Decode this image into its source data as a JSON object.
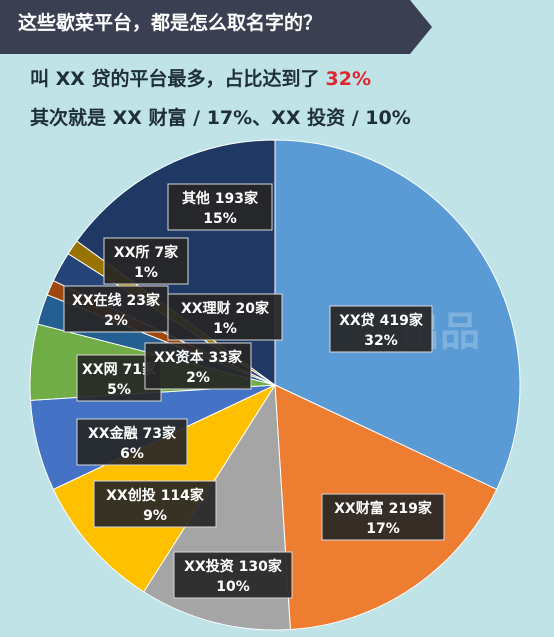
{
  "title": "这些歇菜平台，都是怎么取名字的？",
  "headline1": {
    "prefix": "叫 XX 贷的平台最多，占比达到了",
    "value": "32%"
  },
  "headline2": "其次就是 XX 财富 / 17%、XX 投资 / 10%",
  "watermark": "出品",
  "colors": {
    "background": "#bfe3e6",
    "banner": "#3a3f52",
    "accent": "#e0262e",
    "label_bg": "#262626"
  },
  "chart_data": {
    "type": "pie",
    "start_angle_deg": 0,
    "slices": [
      {
        "name": "XX贷",
        "count": "419家",
        "percent": 32,
        "percent_label": "32%",
        "color": "#5b9bd5"
      },
      {
        "name": "XX财富",
        "count": "219家",
        "percent": 17,
        "percent_label": "17%",
        "color": "#ed7d31"
      },
      {
        "name": "XX投资",
        "count": "130家",
        "percent": 10,
        "percent_label": "10%",
        "color": "#a5a5a5"
      },
      {
        "name": "XX创投",
        "count": "114家",
        "percent": 9,
        "percent_label": "9%",
        "color": "#ffc000"
      },
      {
        "name": "XX金融",
        "count": "73家",
        "percent": 6,
        "percent_label": "6%",
        "color": "#4472c4"
      },
      {
        "name": "XX网",
        "count": "71家",
        "percent": 5,
        "percent_label": "5%",
        "color": "#70ad47"
      },
      {
        "name": "XX资本",
        "count": "33家",
        "percent": 2,
        "percent_label": "2%",
        "color": "#255e91"
      },
      {
        "name": "XX理财",
        "count": "20家",
        "percent": 1,
        "percent_label": "1%",
        "color": "#9e480e"
      },
      {
        "name": "XX在线",
        "count": "23家",
        "percent": 2,
        "percent_label": "2%",
        "color": "#264478"
      },
      {
        "name": "XX所",
        "count": "7家",
        "percent": 1,
        "percent_label": "1%",
        "color": "#997300"
      },
      {
        "name": "其他",
        "count": "193家",
        "percent": 15,
        "percent_label": "15%",
        "color": "#203864"
      }
    ]
  }
}
